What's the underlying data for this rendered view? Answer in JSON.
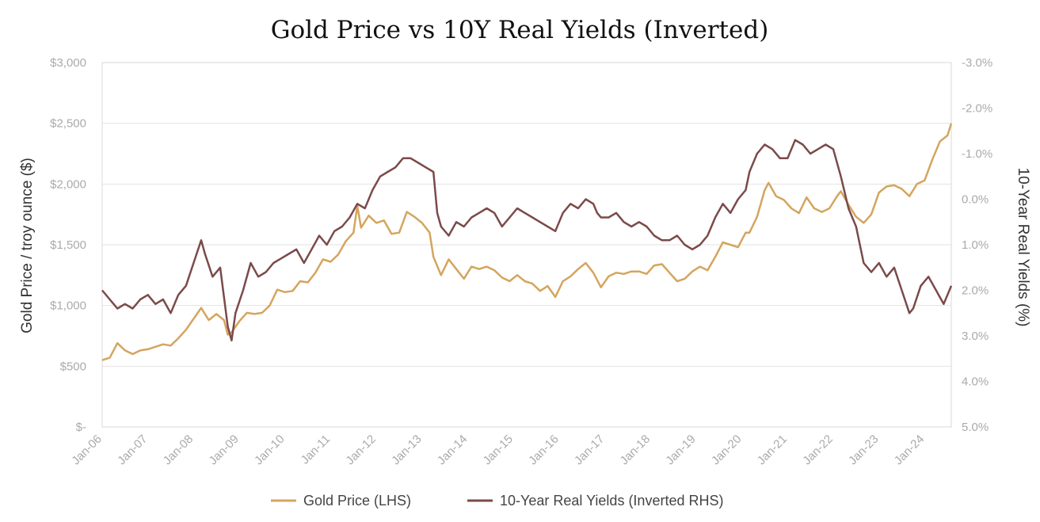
{
  "chart_data": {
    "type": "line",
    "title": "Gold Price vs 10Y Real Yields (Inverted)",
    "ylabel_left": "Gold Price / troy ounce ($)",
    "ylabel_right": "10-Year Real Yields (%)",
    "x_ticks": [
      "Jan-06",
      "Jan-07",
      "Jan-08",
      "Jan-09",
      "Jan-10",
      "Jan-11",
      "Jan-12",
      "Jan-13",
      "Jan-14",
      "Jan-15",
      "Jan-16",
      "Jan-17",
      "Jan-18",
      "Jan-19",
      "Jan-20",
      "Jan-21",
      "Jan-22",
      "Jan-23",
      "Jan-24"
    ],
    "y_left_ticks": [
      "$-",
      "$500",
      "$1,000",
      "$1,500",
      "$2,000",
      "$2,500",
      "$3,000"
    ],
    "y_left_values": [
      0,
      500,
      1000,
      1500,
      2000,
      2500,
      3000
    ],
    "y_right_ticks": [
      "5.0%",
      "4.0%",
      "3.0%",
      "2.0%",
      "1.0%",
      "0.0%",
      "-1.0%",
      "-2.0%",
      "-3.0%"
    ],
    "y_right_values": [
      5.0,
      4.0,
      3.0,
      2.0,
      1.0,
      0.0,
      -1.0,
      -2.0,
      -3.0
    ],
    "ylim_left": [
      0,
      3000
    ],
    "ylim_right": [
      5.0,
      -3.0
    ],
    "right_axis_inverted": true,
    "x_range": [
      "2006-01",
      "2024-08"
    ],
    "grid": "horizontal",
    "legend_position": "bottom-center",
    "colors": {
      "gold": "#D4A55E",
      "real_yield": "#7B4A4A"
    },
    "series": [
      {
        "name": "Gold Price (LHS)",
        "axis": "left",
        "x": [
          "2006-01",
          "2006-03",
          "2006-05",
          "2006-07",
          "2006-09",
          "2006-11",
          "2007-01",
          "2007-03",
          "2007-05",
          "2007-07",
          "2007-09",
          "2007-11",
          "2008-01",
          "2008-03",
          "2008-05",
          "2008-07",
          "2008-09",
          "2008-10",
          "2008-11",
          "2009-01",
          "2009-03",
          "2009-05",
          "2009-07",
          "2009-09",
          "2009-11",
          "2010-01",
          "2010-03",
          "2010-05",
          "2010-07",
          "2010-09",
          "2010-11",
          "2011-01",
          "2011-03",
          "2011-05",
          "2011-07",
          "2011-08",
          "2011-09",
          "2011-11",
          "2012-01",
          "2012-03",
          "2012-05",
          "2012-07",
          "2012-09",
          "2012-11",
          "2013-01",
          "2013-03",
          "2013-04",
          "2013-06",
          "2013-08",
          "2013-10",
          "2013-12",
          "2014-02",
          "2014-04",
          "2014-06",
          "2014-08",
          "2014-10",
          "2014-12",
          "2015-02",
          "2015-04",
          "2015-06",
          "2015-08",
          "2015-10",
          "2015-12",
          "2016-02",
          "2016-04",
          "2016-06",
          "2016-08",
          "2016-10",
          "2016-12",
          "2017-02",
          "2017-04",
          "2017-06",
          "2017-08",
          "2017-10",
          "2017-12",
          "2018-02",
          "2018-04",
          "2018-06",
          "2018-08",
          "2018-10",
          "2018-12",
          "2019-02",
          "2019-04",
          "2019-06",
          "2019-08",
          "2019-10",
          "2019-12",
          "2020-02",
          "2020-03",
          "2020-05",
          "2020-07",
          "2020-08",
          "2020-10",
          "2020-12",
          "2021-02",
          "2021-04",
          "2021-06",
          "2021-08",
          "2021-10",
          "2021-12",
          "2022-02",
          "2022-03",
          "2022-05",
          "2022-07",
          "2022-09",
          "2022-11",
          "2023-01",
          "2023-03",
          "2023-05",
          "2023-07",
          "2023-09",
          "2023-11",
          "2024-01",
          "2024-03",
          "2024-05",
          "2024-07",
          "2024-08"
        ],
        "values": [
          550,
          570,
          690,
          630,
          600,
          630,
          640,
          660,
          680,
          670,
          730,
          800,
          890,
          980,
          880,
          930,
          880,
          760,
          780,
          870,
          940,
          930,
          940,
          1000,
          1130,
          1110,
          1120,
          1200,
          1190,
          1270,
          1380,
          1360,
          1420,
          1530,
          1600,
          1820,
          1640,
          1740,
          1680,
          1700,
          1590,
          1600,
          1770,
          1730,
          1680,
          1600,
          1400,
          1250,
          1380,
          1300,
          1220,
          1320,
          1300,
          1320,
          1290,
          1230,
          1200,
          1250,
          1200,
          1180,
          1120,
          1160,
          1070,
          1200,
          1240,
          1300,
          1350,
          1270,
          1150,
          1240,
          1270,
          1260,
          1280,
          1280,
          1260,
          1330,
          1340,
          1270,
          1200,
          1220,
          1280,
          1320,
          1290,
          1400,
          1520,
          1500,
          1480,
          1600,
          1600,
          1730,
          1950,
          2010,
          1900,
          1870,
          1800,
          1760,
          1890,
          1800,
          1770,
          1800,
          1900,
          1940,
          1830,
          1730,
          1680,
          1750,
          1930,
          1980,
          1990,
          1960,
          1900,
          2000,
          2030,
          2200,
          2350,
          2400,
          2500
        ]
      },
      {
        "name": "10-Year Real Yields (Inverted RHS)",
        "axis": "right",
        "x": [
          "2006-01",
          "2006-03",
          "2006-05",
          "2006-07",
          "2006-09",
          "2006-11",
          "2007-01",
          "2007-03",
          "2007-05",
          "2007-07",
          "2007-09",
          "2007-11",
          "2008-01",
          "2008-03",
          "2008-04",
          "2008-06",
          "2008-08",
          "2008-10",
          "2008-11",
          "2008-12",
          "2009-02",
          "2009-04",
          "2009-06",
          "2009-08",
          "2009-10",
          "2009-12",
          "2010-02",
          "2010-04",
          "2010-06",
          "2010-08",
          "2010-10",
          "2010-12",
          "2011-02",
          "2011-04",
          "2011-06",
          "2011-08",
          "2011-10",
          "2011-12",
          "2012-02",
          "2012-04",
          "2012-06",
          "2012-08",
          "2012-10",
          "2012-12",
          "2013-02",
          "2013-04",
          "2013-05",
          "2013-06",
          "2013-08",
          "2013-10",
          "2013-12",
          "2014-02",
          "2014-04",
          "2014-06",
          "2014-08",
          "2014-10",
          "2014-12",
          "2015-02",
          "2015-04",
          "2015-06",
          "2015-08",
          "2015-10",
          "2015-12",
          "2016-02",
          "2016-04",
          "2016-06",
          "2016-08",
          "2016-10",
          "2016-11",
          "2016-12",
          "2017-02",
          "2017-04",
          "2017-06",
          "2017-08",
          "2017-10",
          "2017-12",
          "2018-02",
          "2018-04",
          "2018-06",
          "2018-08",
          "2018-10",
          "2018-12",
          "2019-02",
          "2019-04",
          "2019-06",
          "2019-08",
          "2019-10",
          "2019-12",
          "2020-02",
          "2020-03",
          "2020-05",
          "2020-07",
          "2020-09",
          "2020-11",
          "2021-01",
          "2021-03",
          "2021-05",
          "2021-07",
          "2021-09",
          "2021-11",
          "2022-01",
          "2022-03",
          "2022-05",
          "2022-07",
          "2022-09",
          "2022-11",
          "2023-01",
          "2023-03",
          "2023-05",
          "2023-07",
          "2023-09",
          "2023-10",
          "2023-12",
          "2024-02",
          "2024-04",
          "2024-06",
          "2024-08"
        ],
        "values": [
          2.0,
          2.2,
          2.4,
          2.3,
          2.4,
          2.2,
          2.1,
          2.3,
          2.2,
          2.5,
          2.1,
          1.9,
          1.4,
          0.9,
          1.2,
          1.7,
          1.5,
          2.8,
          3.1,
          2.5,
          2.0,
          1.4,
          1.7,
          1.6,
          1.4,
          1.3,
          1.2,
          1.1,
          1.4,
          1.1,
          0.8,
          1.0,
          0.7,
          0.6,
          0.4,
          0.1,
          0.2,
          -0.2,
          -0.5,
          -0.6,
          -0.7,
          -0.9,
          -0.9,
          -0.8,
          -0.7,
          -0.6,
          0.3,
          0.6,
          0.8,
          0.5,
          0.6,
          0.4,
          0.3,
          0.2,
          0.3,
          0.6,
          0.4,
          0.2,
          0.3,
          0.4,
          0.5,
          0.6,
          0.7,
          0.3,
          0.1,
          0.2,
          0.0,
          0.1,
          0.3,
          0.4,
          0.4,
          0.3,
          0.5,
          0.6,
          0.5,
          0.6,
          0.8,
          0.9,
          0.9,
          0.8,
          1.0,
          1.1,
          1.0,
          0.8,
          0.4,
          0.1,
          0.3,
          0.0,
          -0.2,
          -0.6,
          -1.0,
          -1.2,
          -1.1,
          -0.9,
          -0.9,
          -1.3,
          -1.2,
          -1.0,
          -1.1,
          -1.2,
          -1.1,
          -0.5,
          0.2,
          0.6,
          1.4,
          1.6,
          1.4,
          1.7,
          1.5,
          2.0,
          2.5,
          2.4,
          1.9,
          1.7,
          2.0,
          2.3,
          1.9
        ]
      }
    ]
  }
}
